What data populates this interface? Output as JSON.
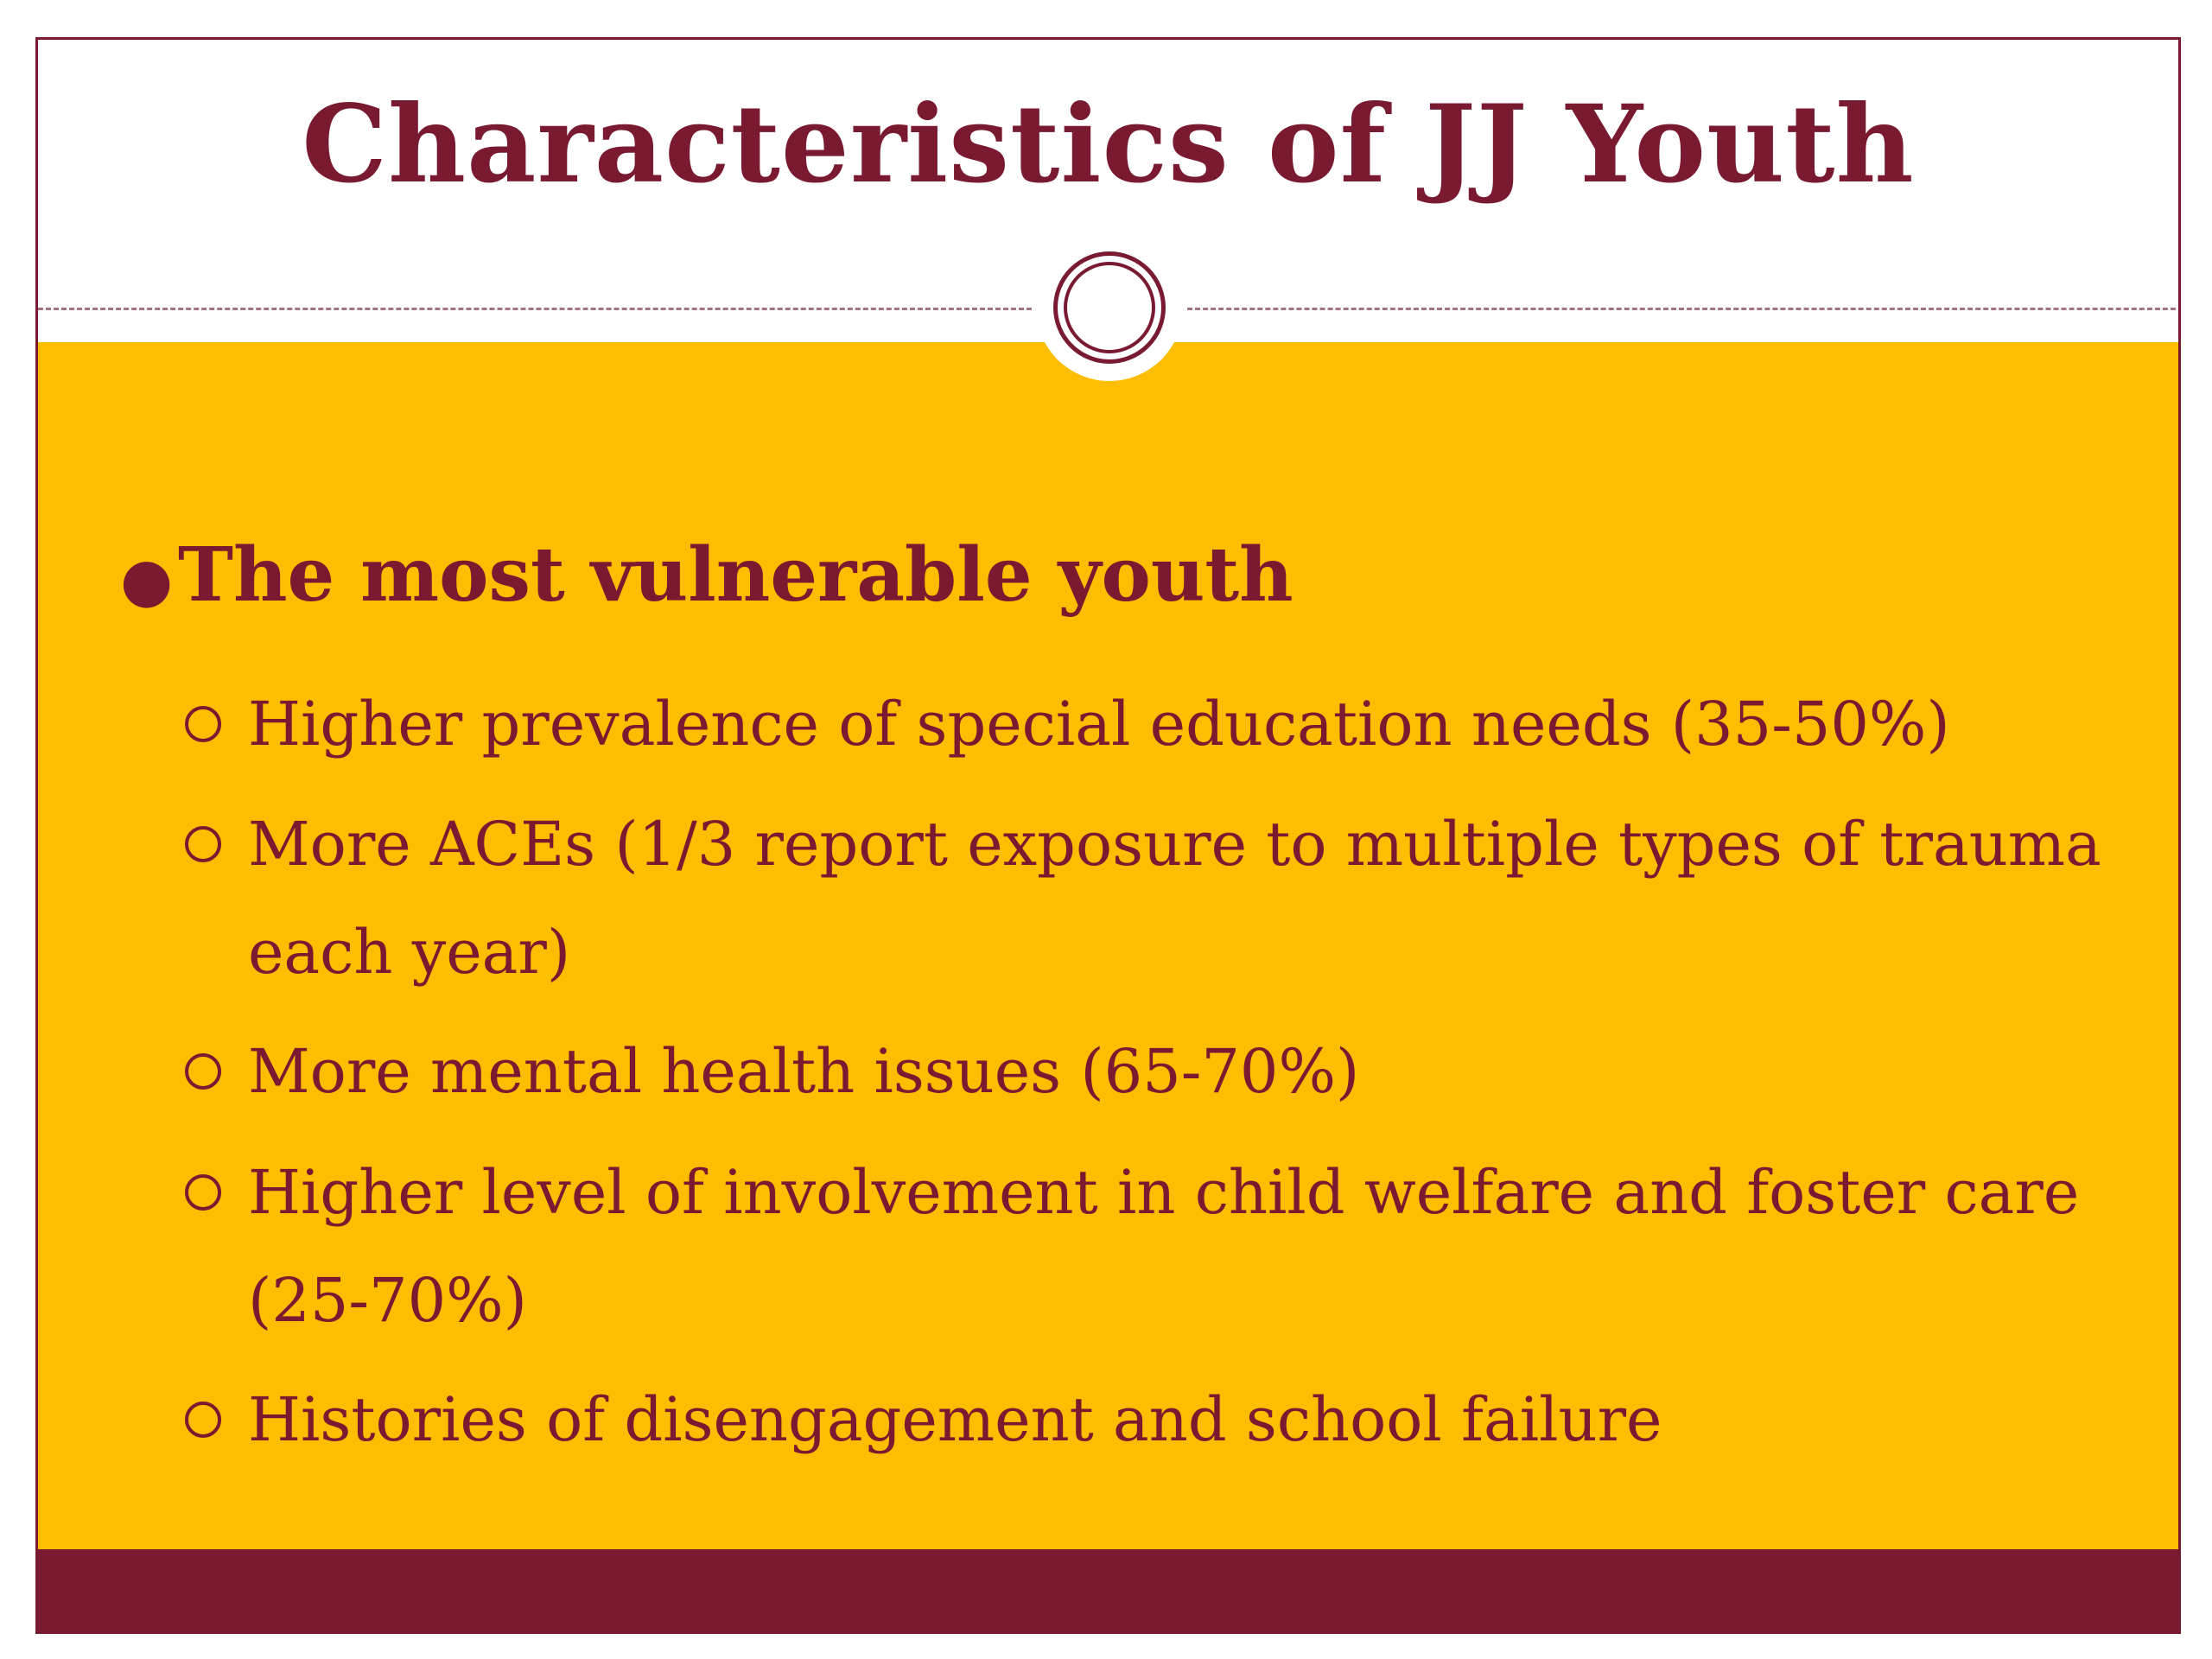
{
  "slide": {
    "title": "Characteristics of JJ Youth",
    "bullets": {
      "main": "The most vulnerable youth",
      "sub": [
        "Higher prevalence of special education needs (35-50%)",
        "More ACEs (1/3 report exposure to multiple types of trauma each year)",
        "More mental health issues (65-70%)",
        "Higher level of involvement in child welfare and foster care (25-70%)",
        "Histories of disengagement and school failure"
      ]
    }
  },
  "colors": {
    "accent": "#7a1a30",
    "background": "#fdbd00",
    "title_background": "#ffffff"
  },
  "icons": {
    "main_bullet": "filled-dot-icon",
    "sub_bullet": "hollow-circle-icon",
    "ornament": "double-ring-icon"
  }
}
